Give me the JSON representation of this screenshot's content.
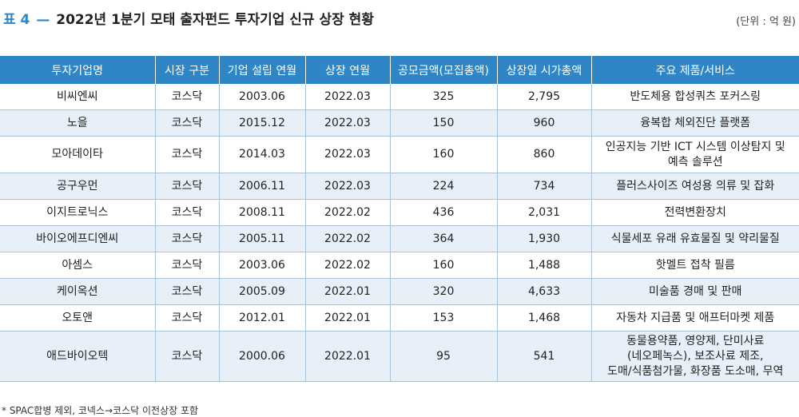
{
  "header": {
    "tag": "표 4",
    "dash": "—",
    "title": "2022년 1분기 모태 출자펀드 투자기업 신규 상장 현황",
    "unit": "(단위 : 억 원)"
  },
  "table": {
    "columns": [
      "투자기업명",
      "시장 구분",
      "기업 설립 연월",
      "상장 연월",
      "공모금액(모집총액)",
      "상장일 시가총액",
      "주요 제품/서비스"
    ],
    "rows": [
      {
        "name": "비씨엔씨",
        "market": "코스닥",
        "founded": "2003.06",
        "listed": "2022.03",
        "ipo": "325",
        "cap": "2,795",
        "product": "반도체용 합성쿼츠 포커스링"
      },
      {
        "name": "노을",
        "market": "코스닥",
        "founded": "2015.12",
        "listed": "2022.03",
        "ipo": "150",
        "cap": "960",
        "product": "융복합 체외진단 플랫폼"
      },
      {
        "name": "모아데이타",
        "market": "코스닥",
        "founded": "2014.03",
        "listed": "2022.03",
        "ipo": "160",
        "cap": "860",
        "product_lines": [
          "인공지능 기반 ICT 시스템 이상탐지 및",
          "예측 솔루션"
        ]
      },
      {
        "name": "공구우먼",
        "market": "코스닥",
        "founded": "2006.11",
        "listed": "2022.03",
        "ipo": "224",
        "cap": "734",
        "product": "플러스사이즈 여성용 의류 및 잡화"
      },
      {
        "name": "이지트로닉스",
        "market": "코스닥",
        "founded": "2008.11",
        "listed": "2022.02",
        "ipo": "436",
        "cap": "2,031",
        "product": "전력변환장치"
      },
      {
        "name": "바이오에프디엔씨",
        "market": "코스닥",
        "founded": "2005.11",
        "listed": "2022.02",
        "ipo": "364",
        "cap": "1,930",
        "product": "식물세포 유래 유효물질 및 약리물질"
      },
      {
        "name": "아셈스",
        "market": "코스닥",
        "founded": "2003.06",
        "listed": "2022.02",
        "ipo": "160",
        "cap": "1,488",
        "product": "핫멜트 접착 필름"
      },
      {
        "name": "케이옥션",
        "market": "코스닥",
        "founded": "2005.09",
        "listed": "2022.01",
        "ipo": "320",
        "cap": "4,633",
        "product": "미술품 경매 및 판매"
      },
      {
        "name": "오토앤",
        "market": "코스닥",
        "founded": "2012.01",
        "listed": "2022.01",
        "ipo": "153",
        "cap": "1,468",
        "product": "자동차 지급품 및 애프터마켓 제품"
      },
      {
        "name": "애드바이오텍",
        "market": "코스닥",
        "founded": "2000.06",
        "listed": "2022.01",
        "ipo": "95",
        "cap": "541",
        "product_lines": [
          "동물용약품, 영양제, 단미사료",
          "(네오페녹스), 보조사료 제조,",
          "도매/식품첨가물, 화장품 도소매, 무역"
        ]
      }
    ]
  },
  "footnote": "* SPAC합병 제외, 코넥스→코스닥 이전상장 포함"
}
